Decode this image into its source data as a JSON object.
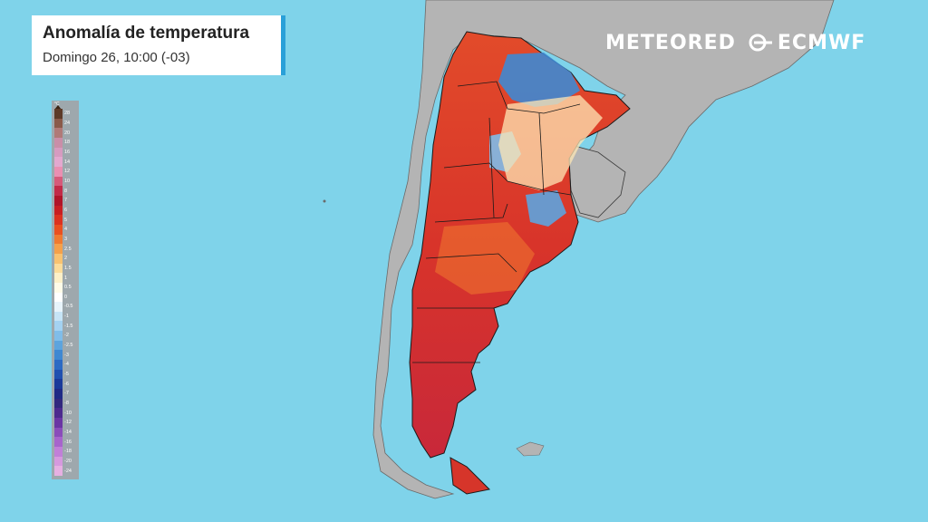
{
  "header": {
    "title": "Anomalía de temperatura",
    "subtitle": "Domingo 26, 10:00 (-03)"
  },
  "logos": {
    "meteored": "METEORED",
    "ecmwf": "ECMWF"
  },
  "legend": {
    "unit": "°C",
    "ticks": [
      "28",
      "24",
      "20",
      "18",
      "16",
      "14",
      "12",
      "10",
      "8",
      "7",
      "6",
      "5",
      "4",
      "3",
      "2.5",
      "2",
      "1.5",
      "1",
      "0.5",
      "0",
      "-0.5",
      "-1",
      "-1.5",
      "-2",
      "-2.5",
      "-3",
      "-4",
      "-5",
      "-6",
      "-7",
      "-8",
      "-10",
      "-12",
      "-14",
      "-16",
      "-18",
      "-20",
      "-24"
    ],
    "colors": [
      "#5d3a28",
      "#8a5a4a",
      "#b07a78",
      "#c98ea8",
      "#d69bc0",
      "#e3a8cf",
      "#ea8fb2",
      "#d65a7a",
      "#c22a48",
      "#b01428",
      "#c81e22",
      "#dc3220",
      "#ea5020",
      "#f07a30",
      "#f5a04a",
      "#f9c270",
      "#fcdc9a",
      "#fdf0c8",
      "#fffbe8",
      "#ffffff",
      "#e8f4fb",
      "#c6e4f6",
      "#a4d2f1",
      "#80bde9",
      "#5da4de",
      "#3f88d2",
      "#2c6ac4",
      "#2050b0",
      "#1a3a9a",
      "#1f2a86",
      "#31287e",
      "#4c2a8e",
      "#6a35a4",
      "#8a4cba",
      "#a764cc",
      "#c17fd8",
      "#d699de",
      "#e6b0e2"
    ]
  },
  "map_colors": {
    "ocean": "#7fd3ea",
    "land": "#b4b4b4",
    "border": "#1a1a1a"
  }
}
